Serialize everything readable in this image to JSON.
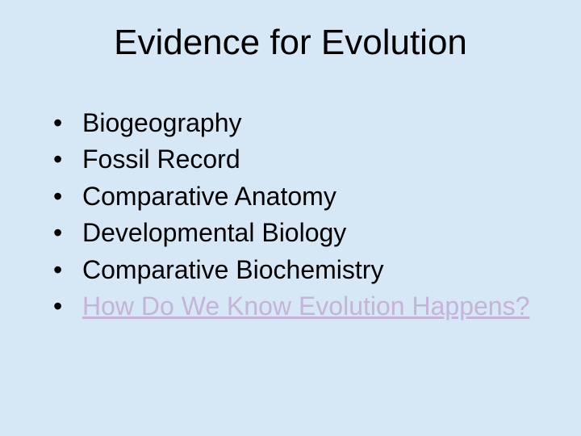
{
  "slide": {
    "title": "Evidence for Evolution",
    "bullet_marker": "•",
    "items": [
      {
        "text": "Biogeography",
        "is_link": false
      },
      {
        "text": "Fossil Record",
        "is_link": false
      },
      {
        "text": "Comparative Anatomy",
        "is_link": false
      },
      {
        "text": "Developmental Biology",
        "is_link": false
      },
      {
        "text": "Comparative Biochemistry",
        "is_link": false
      },
      {
        "text": "How Do We Know Evolution Happens?",
        "is_link": true
      }
    ]
  },
  "style": {
    "background_color": "#d6e8f5",
    "title_fontsize": 44,
    "body_fontsize": 32,
    "font_family": "Comic Sans MS",
    "text_color": "#000000",
    "link_color": "#c6b3d9"
  }
}
